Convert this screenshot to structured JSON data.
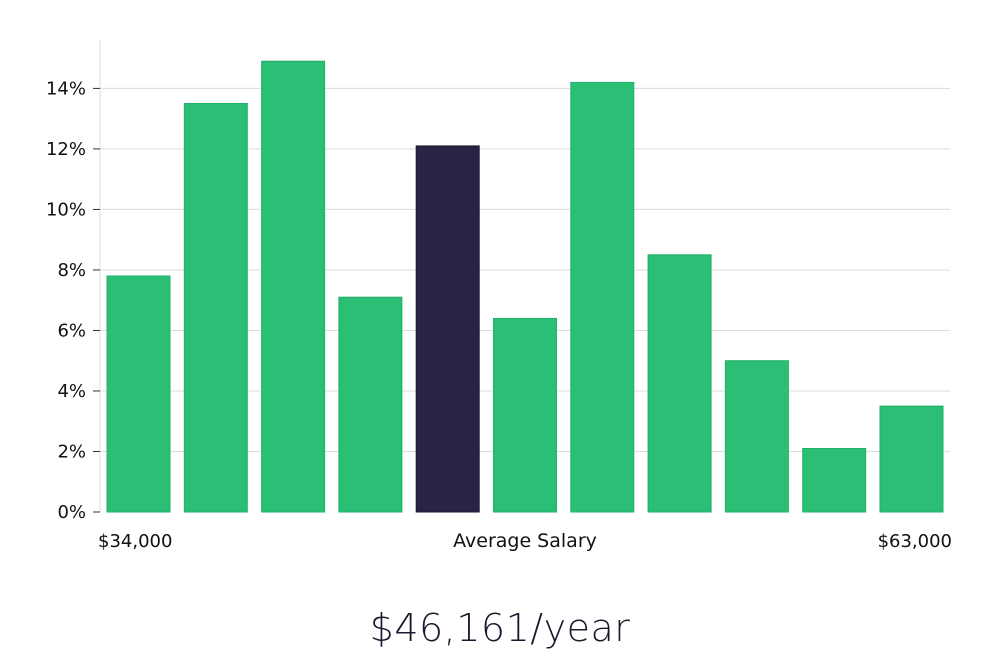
{
  "chart_data": {
    "type": "bar",
    "values": [
      7.8,
      13.5,
      14.9,
      7.1,
      12.1,
      6.4,
      14.2,
      8.5,
      5.0,
      2.1,
      3.5
    ],
    "highlight_index": 4,
    "ylim": [
      0,
      15.6
    ],
    "yticks": [
      "0%",
      "2%",
      "4%",
      "6%",
      "8%",
      "10%",
      "12%",
      "14%"
    ],
    "x_min_label": "$34,000",
    "xlabel": "Average Salary",
    "x_max_label": "$63,000",
    "grid": true,
    "colors": {
      "bar": "#2bbf76",
      "highlight": "#272444",
      "grid": "#dcdcdc",
      "axis": "#d9d9d9"
    }
  },
  "average_salary": "$46,161/year"
}
